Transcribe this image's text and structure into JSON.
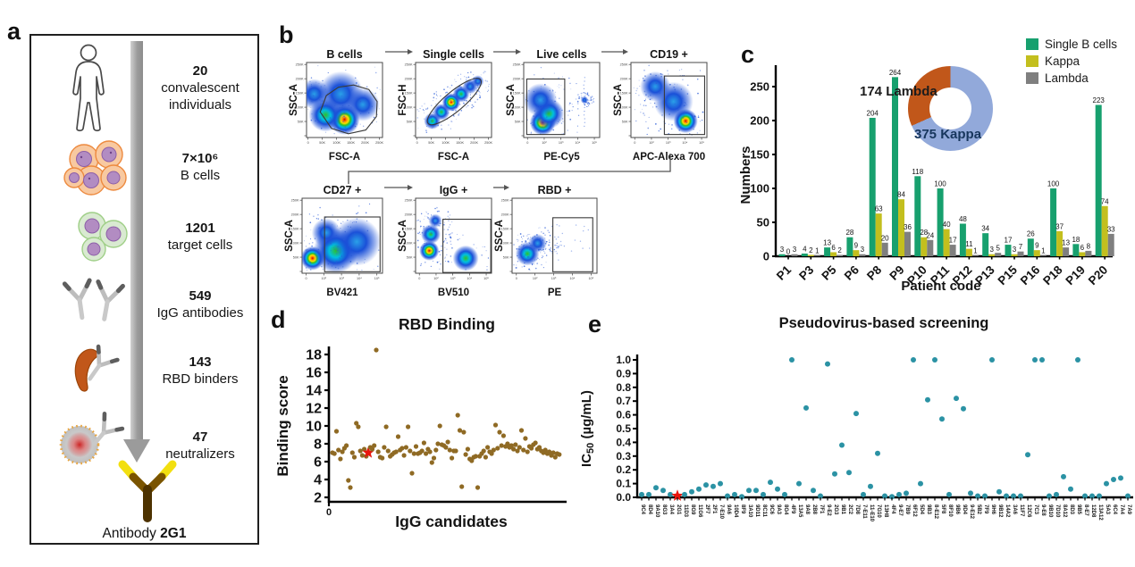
{
  "panels": {
    "a": {
      "label": "a",
      "steps": [
        {
          "num": "20",
          "line1": "convalescent",
          "line2": "individuals"
        },
        {
          "num": "7×10⁶",
          "line1": "B cells",
          "line2": ""
        },
        {
          "num": "1201",
          "line1": "target cells",
          "line2": ""
        },
        {
          "num": "549",
          "line1": "IgG antibodies",
          "line2": ""
        },
        {
          "num": "143",
          "line1": "RBD binders",
          "line2": ""
        },
        {
          "num": "47",
          "line1": "neutralizers",
          "line2": ""
        }
      ],
      "footer": {
        "prefix": "Antibody",
        "name": "2G1"
      }
    },
    "b": {
      "label": "b",
      "plots": [
        {
          "title": "B cells",
          "xlabel": "FSC-A",
          "ylabel": "SSC-A",
          "xscale": "lin"
        },
        {
          "title": "Single cells",
          "xlabel": "FSC-A",
          "ylabel": "FSC-H",
          "xscale": "lin"
        },
        {
          "title": "Live cells",
          "xlabel": "PE-Cy5",
          "ylabel": "SSC-A",
          "xscale": "log"
        },
        {
          "title": "CD19 +",
          "xlabel": "APC-Alexa 700",
          "ylabel": "SSC-A",
          "xscale": "log"
        },
        {
          "title": "CD27 +",
          "xlabel": "BV421",
          "ylabel": "SSC-A",
          "xscale": "log"
        },
        {
          "title": "IgG +",
          "xlabel": "BV510",
          "ylabel": "SSC-A",
          "xscale": "log"
        },
        {
          "title": "RBD +",
          "xlabel": "PE",
          "ylabel": "SSC-A",
          "xscale": "log"
        }
      ],
      "lin_ticks": [
        "0",
        "50K",
        "100K",
        "150K",
        "200K",
        "250K"
      ],
      "log_ticks": [
        "0",
        "10²",
        "10³",
        "10⁴",
        "10⁵"
      ],
      "y_ticks": [
        "0",
        "50K",
        "100K",
        "150K",
        "200K",
        "250K"
      ]
    },
    "c": {
      "label": "c"
    },
    "d": {
      "label": "d"
    },
    "e": {
      "label": "e"
    }
  },
  "chart_data": [
    {
      "id": "c",
      "type": "bar",
      "ylabel": "Numbers",
      "xlabel": "Patient code",
      "yticks": [
        0,
        50,
        100,
        150,
        200,
        250
      ],
      "ylim": [
        0,
        280
      ],
      "categories": [
        "P1",
        "P3",
        "P5",
        "P6",
        "P8",
        "P9",
        "P10",
        "P11",
        "P12",
        "P13",
        "P15",
        "P16",
        "P18",
        "P19",
        "P20"
      ],
      "series": [
        {
          "name": "Single B cells",
          "color": "#17a06e",
          "values": [
            3,
            4,
            13,
            28,
            204,
            264,
            118,
            100,
            48,
            34,
            17,
            26,
            100,
            18,
            223
          ]
        },
        {
          "name": "Kappa",
          "color": "#c3bf1e",
          "values": [
            0,
            2,
            6,
            9,
            63,
            84,
            28,
            40,
            11,
            3,
            3,
            9,
            37,
            6,
            74
          ]
        },
        {
          "name": "Lambda",
          "color": "#7f7f7f",
          "values": [
            3,
            1,
            2,
            3,
            20,
            36,
            24,
            17,
            1,
            5,
            7,
            1,
            13,
            8,
            33
          ]
        }
      ],
      "legend_position": "top-right",
      "donut": {
        "kappa": 375,
        "lambda": 174,
        "kappa_label": "375 Kappa",
        "lambda_label": "174 Lambda",
        "kappa_color": "#92a9da",
        "lambda_color": "#c1571a"
      }
    },
    {
      "id": "d",
      "type": "scatter",
      "title": "RBD Binding",
      "xlabel": "IgG candidates",
      "ylabel": "Binding score",
      "yticks": [
        2,
        4,
        6,
        8,
        10,
        12,
        14,
        16,
        18
      ],
      "ylim": [
        2,
        19.5
      ],
      "x_origin_label": "0",
      "point_color": "#8f6a24",
      "star_color": "#e8150c",
      "star_index": 18,
      "values": [
        7.0,
        6.9,
        9.4,
        7.3,
        6.3,
        7.1,
        7.5,
        7.8,
        3.9,
        3.1,
        7.0,
        6.5,
        10.3,
        9.9,
        7.2,
        6.7,
        7.4,
        6.6,
        7.0,
        7.6,
        7.4,
        7.8,
        18.5,
        7.1,
        6.5,
        6.4,
        7.6,
        9.9,
        7.2,
        6.6,
        6.8,
        7.0,
        7.1,
        8.8,
        7.3,
        7.5,
        6.7,
        7.6,
        9.9,
        7.2,
        4.7,
        6.9,
        7.7,
        6.9,
        7.0,
        7.2,
        8.1,
        6.9,
        7.4,
        7.1,
        5.9,
        6.4,
        7.3,
        8.0,
        10.0,
        7.9,
        7.8,
        7.6,
        8.2,
        7.3,
        6.4,
        7.2,
        7.2,
        11.2,
        9.5,
        3.2,
        9.3,
        6.8,
        7.4,
        6.3,
        6.1,
        6.5,
        6.6,
        3.1,
        6.6,
        6.9,
        7.2,
        6.5,
        7.6,
        7.1,
        6.9,
        7.3,
        10.1,
        7.5,
        9.3,
        7.8,
        8.9,
        7.7,
        8.0,
        7.6,
        7.8,
        7.4,
        7.9,
        7.2,
        7.6,
        9.5,
        7.3,
        8.6,
        7.1,
        7.7,
        7.5,
        7.9,
        8.1,
        7.4,
        7.6,
        7.2,
        7.0,
        7.3,
        6.9,
        7.1,
        6.7,
        7.0,
        6.5,
        6.9,
        6.8
      ]
    },
    {
      "id": "e",
      "type": "scatter",
      "title": "Pseudovirus-based screening",
      "ylabel_parts": {
        "pre": "IC",
        "sub": "50",
        "post": " (µg/mL)"
      },
      "yticks": [
        "0.0",
        "0.1",
        "0.2",
        "0.3",
        "0.4",
        "0.5",
        "0.6",
        "0.7",
        "0.8",
        "0.9",
        "1.0"
      ],
      "ylim": [
        0,
        1.0
      ],
      "point_color": "#2b92a4",
      "star_color": "#e8150c",
      "star_candidate": "2G1",
      "candidates": [
        "9C4",
        "8D4",
        "9A10",
        "8G3",
        "3A4",
        "2G1",
        "11D3",
        "8G9",
        "11G6",
        "2F7",
        "2F1",
        "7-E10",
        "9A6",
        "10D4",
        "8F9",
        "3A10",
        "9D11",
        "8C11",
        "9C6",
        "9A3",
        "8G4",
        "4F9",
        "13A5",
        "9A8",
        "2B8",
        "7F1",
        "9-E2",
        "2G3",
        "9B1",
        "2C2",
        "7D8",
        "7-E11",
        "11-E10",
        "7G10",
        "13H8",
        "4F4",
        "9-E7",
        "7B9",
        "6F12",
        "5D4",
        "9B3",
        "8-E12",
        "5F8",
        "8F10",
        "9B6",
        "9D4",
        "9-E12",
        "5B2",
        "7F9",
        "9H6",
        "9B12",
        "14A2",
        "3A6",
        "11F7",
        "12C6",
        "7C3",
        "9-E8",
        "9B10",
        "7D10",
        "8A12",
        "8D3",
        "9B5",
        "8-E7",
        "12D8",
        "13A12",
        "5A3",
        "6C4",
        "7A4",
        "7A9"
      ],
      "values": [
        0.02,
        0.02,
        0.07,
        0.05,
        0.02,
        0.005,
        0.02,
        0.04,
        0.06,
        0.09,
        0.08,
        0.1,
        0.01,
        0.02,
        0.005,
        0.05,
        0.05,
        0.02,
        0.11,
        0.06,
        0.02,
        1.0,
        0.1,
        0.65,
        0.05,
        0.01,
        0.97,
        0.17,
        0.38,
        0.18,
        0.61,
        0.02,
        0.08,
        0.32,
        0.01,
        0.005,
        0.02,
        0.03,
        1.0,
        0.1,
        0.71,
        1.0,
        0.57,
        0.02,
        0.72,
        0.645,
        0.03,
        0.01,
        0.01,
        1.0,
        0.04,
        0.01,
        0.01,
        0.01,
        0.31,
        1.0,
        1.0,
        0.01,
        0.02,
        0.15,
        0.06,
        1.0,
        0.01,
        0.01,
        0.01,
        0.1,
        0.13,
        0.14,
        0.01
      ]
    }
  ]
}
